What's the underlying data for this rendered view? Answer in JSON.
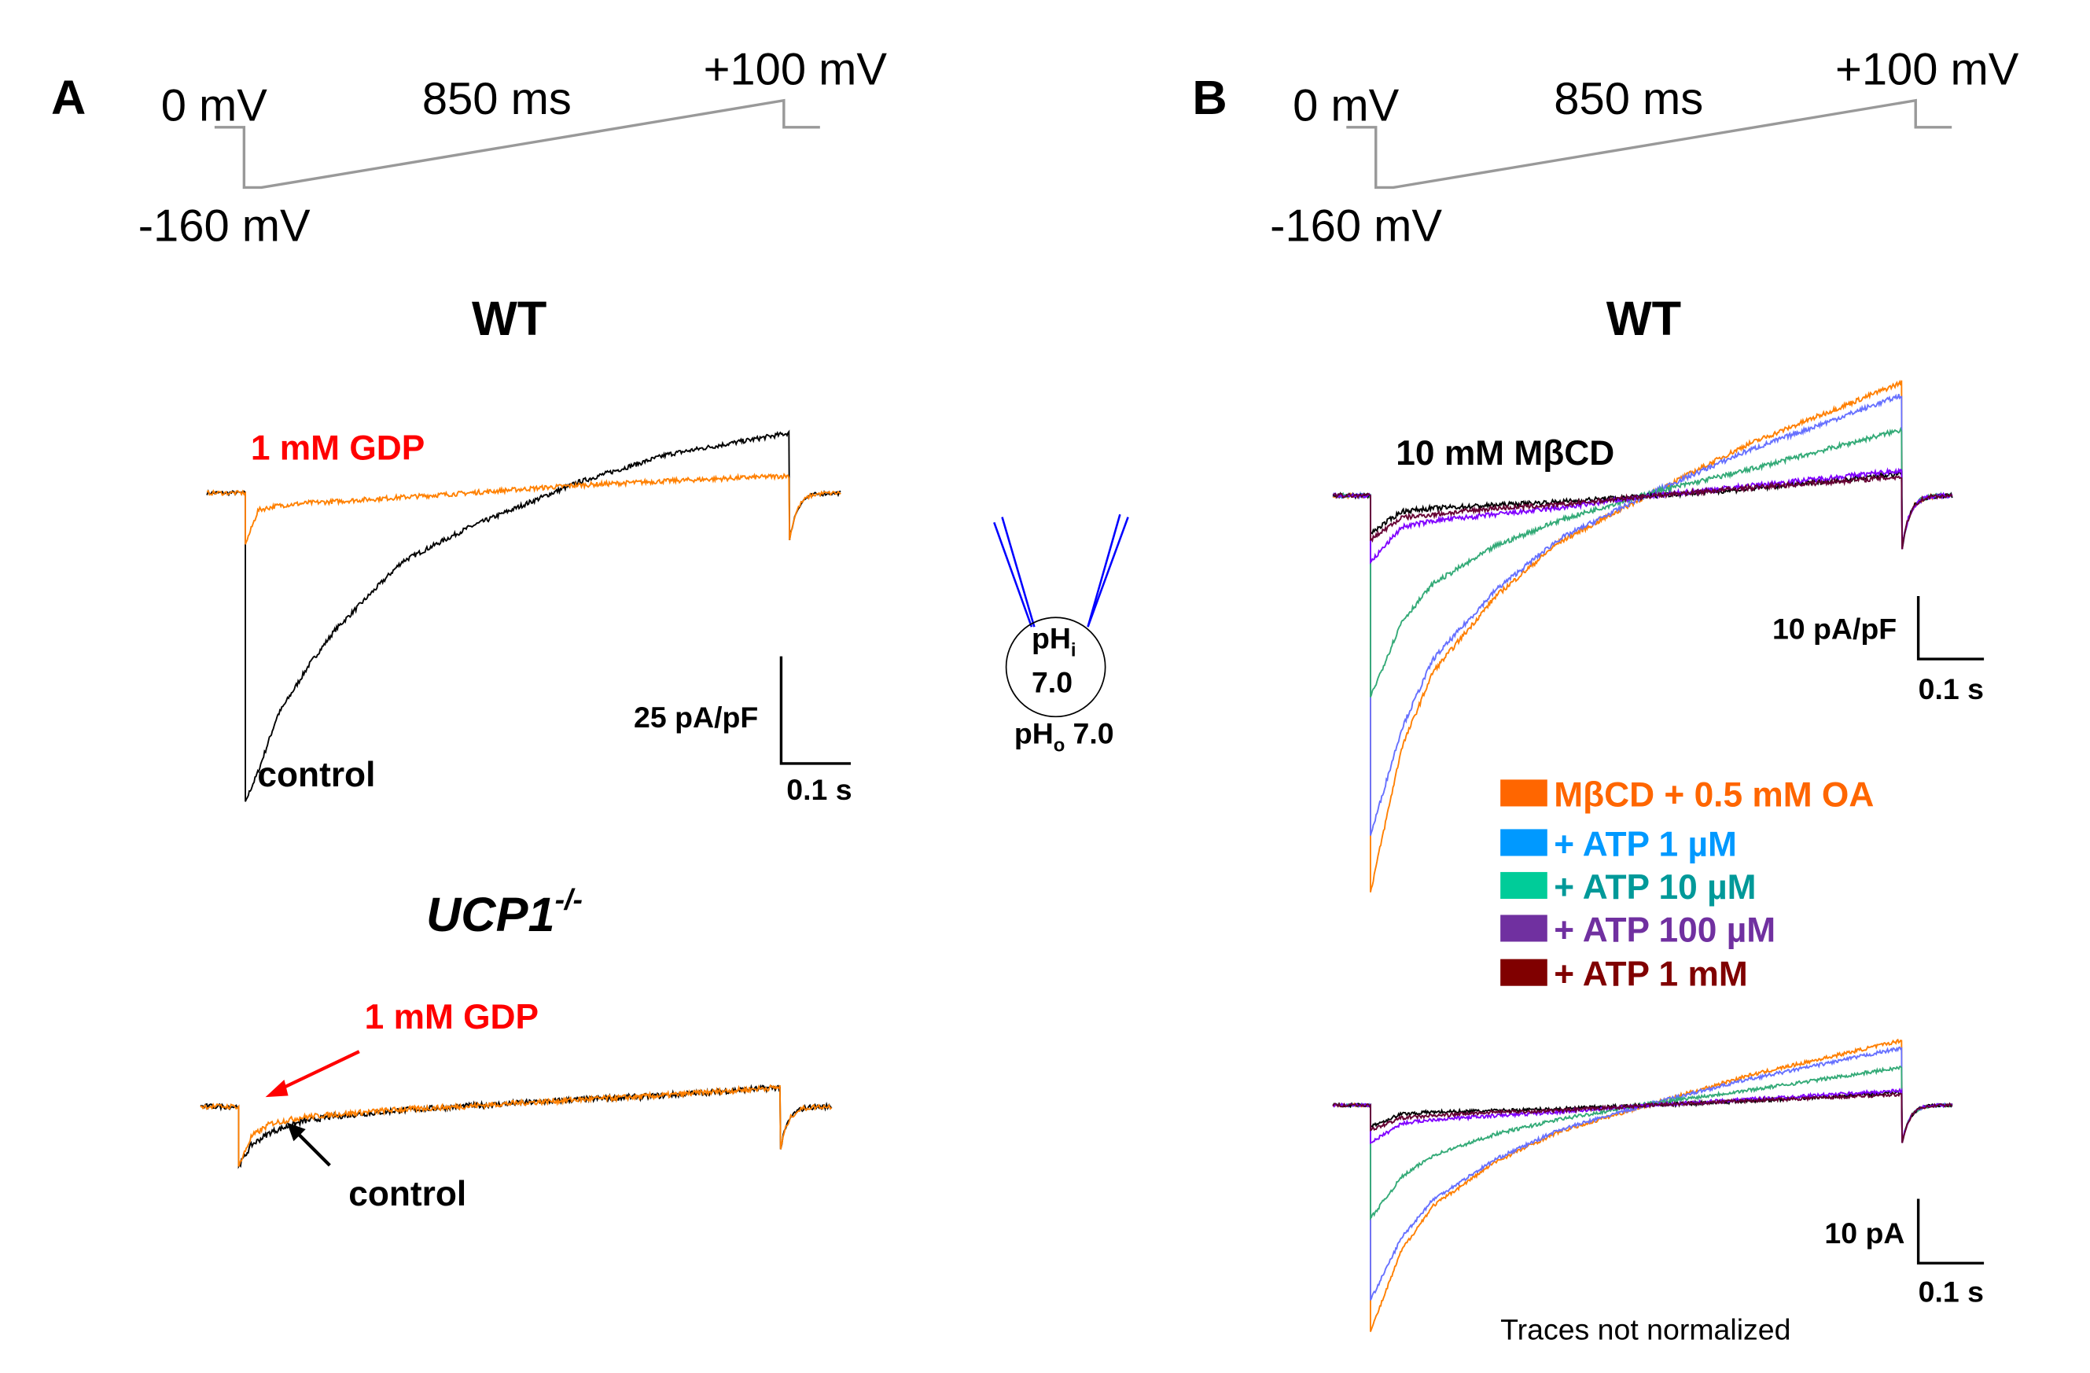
{
  "panels": {
    "A": {
      "letter": "A",
      "protocol": {
        "hold": "0 mV",
        "step": "-160 mV",
        "duration": "850 ms",
        "end": "+100 mV"
      },
      "wt_title": "WT",
      "wt_gdp_label": "1 mM GDP",
      "wt_control_label": "control",
      "wt_scale_y": "25 pA/pF",
      "wt_scale_x": "0.1 s",
      "ko_title": "UCP1",
      "ko_title_sup": "-/-",
      "ko_gdp_label": "1 mM GDP",
      "ko_control_label": "control"
    },
    "cell": {
      "ph_i": "pH",
      "ph_i_sub": "i",
      "ph_i_value": "7.0",
      "ph_o": "pH",
      "ph_o_sub": "o",
      "ph_o_value": "7.0"
    },
    "B": {
      "letter": "B",
      "protocol": {
        "hold": "0 mV",
        "step": "-160 mV",
        "duration": "850 ms",
        "end": "+100 mV"
      },
      "wt_title": "WT",
      "mbcd_label": "10 mM MβCD",
      "top_scale_y": "10 pA/pF",
      "top_scale_x": "0.1 s",
      "bottom_scale_y": "10 pA",
      "bottom_scale_x": "0.1 s",
      "note": "Traces not normalized",
      "legend": [
        {
          "label": "MβCD + 0.5 mM OA",
          "swatch": "#ff6600",
          "text_color": "#ff6600"
        },
        {
          "label": "+ ATP 1 µM",
          "swatch": "#0099ff",
          "text_color": "#0099ff"
        },
        {
          "label": "+ ATP 10 µM",
          "swatch": "#00cc99",
          "text_color": "#009999"
        },
        {
          "label": "+ ATP 100 µM",
          "swatch": "#7030a0",
          "text_color": "#7030a0"
        },
        {
          "label": "+ ATP 1 mM",
          "swatch": "#800000",
          "text_color": "#800000"
        }
      ]
    }
  },
  "colors": {
    "protocol": "#999999",
    "pipette": "#0000ff",
    "annotation_red": "#ff0000"
  },
  "chart_data": [
    {
      "type": "line",
      "panel": "A",
      "title": "WT",
      "xunit": "s",
      "yunit": "pA/pF",
      "grid": false,
      "scale_bar": {
        "y": "25 pA/pF",
        "x": "0.1 s"
      },
      "x": [
        0,
        0.02,
        0.05,
        0.1,
        0.14,
        0.245,
        0.35,
        0.52,
        0.66,
        0.85
      ],
      "tail_min": -11,
      "series": [
        {
          "name": "control",
          "color": "#000000",
          "values": [
            -72,
            -65,
            -52,
            -40,
            -32,
            -16,
            -8,
            2.5,
            9,
            14
          ]
        },
        {
          "name": "1 mM GDP",
          "color": "#ff8000",
          "values": [
            -12,
            -4,
            -3,
            -2.3,
            -2,
            -1,
            0,
            1.8,
            2.8,
            4
          ]
        }
      ]
    },
    {
      "type": "line",
      "panel": "A",
      "title": "UCP1-/-",
      "xunit": "s",
      "yunit": "pA/pF",
      "grid": false,
      "x": [
        0,
        0.02,
        0.05,
        0.1,
        0.14,
        0.245,
        0.35,
        0.52,
        0.66,
        0.85
      ],
      "tail_min": -10,
      "series": [
        {
          "name": "control",
          "color": "#000000",
          "values": [
            -14,
            -9,
            -6,
            -3.5,
            -2.5,
            -1,
            0,
            1.5,
            2.5,
            4.5
          ]
        },
        {
          "name": "1 mM GDP",
          "color": "#ff8000",
          "values": [
            -14,
            -7,
            -4,
            -2.5,
            -2,
            -0.8,
            0,
            1.5,
            2.5,
            4.5
          ]
        }
      ]
    },
    {
      "type": "line",
      "panel": "B",
      "title": "WT",
      "xunit": "s",
      "yunit": "pA/pF",
      "grid": false,
      "scale_bar": {
        "y": "10 pA/pF",
        "x": "0.1 s"
      },
      "x": [
        0,
        0.05,
        0.1,
        0.2,
        0.3,
        0.45,
        0.6,
        0.85
      ],
      "tail_min": -8.5,
      "series": [
        {
          "name": "MβCD + 0.5 mM OA",
          "color": "#ff7f00",
          "values": [
            -63,
            -40,
            -28,
            -16,
            -7.5,
            0.4,
            8,
            18
          ]
        },
        {
          "name": "+ ATP 1 µM",
          "color": "#6670ff",
          "values": [
            -54,
            -37,
            -26,
            -15,
            -7,
            0.5,
            7,
            16
          ]
        },
        {
          "name": "+ ATP 10 µM",
          "color": "#33aa77",
          "values": [
            -32,
            -20,
            -14,
            -8,
            -4,
            0.5,
            4,
            10.5
          ]
        },
        {
          "name": "10 mM MβCD",
          "color": "#000000",
          "values": [
            -6,
            -2.5,
            -2,
            -1.5,
            -1,
            0,
            1,
            3.5
          ]
        },
        {
          "name": "+ ATP 100 µM",
          "color": "#8000ff",
          "values": [
            -10.6,
            -5,
            -4,
            -3,
            -2,
            0,
            1.5,
            4
          ]
        },
        {
          "name": "+ ATP 1 mM",
          "color": "#660033",
          "values": [
            -7,
            -3.5,
            -3,
            -2,
            -1.5,
            0,
            1.2,
            3
          ]
        }
      ]
    },
    {
      "type": "line",
      "panel": "B",
      "title": "",
      "xunit": "s",
      "yunit": "pA",
      "grid": false,
      "scale_bar": {
        "y": "10 pA",
        "x": "0.1 s"
      },
      "x": [
        0,
        0.05,
        0.1,
        0.2,
        0.3,
        0.45,
        0.6,
        0.85
      ],
      "tail_min": -6,
      "series": [
        {
          "name": "MβCD + 0.5 mM OA",
          "color": "#ff7f00",
          "values": [
            -36,
            -23,
            -16,
            -9,
            -4.3,
            0.2,
            4.6,
            10.3
          ]
        },
        {
          "name": "+ ATP 1 µM",
          "color": "#6670ff",
          "values": [
            -31,
            -21,
            -15,
            -8.6,
            -4,
            0.3,
            4,
            9.1
          ]
        },
        {
          "name": "+ ATP 10 µM",
          "color": "#33aa77",
          "values": [
            -18,
            -11.4,
            -8,
            -4.6,
            -2.3,
            0.3,
            2.3,
            6
          ]
        },
        {
          "name": "10 mM MβCD",
          "color": "#000000",
          "values": [
            -3.4,
            -1.4,
            -1.1,
            -0.9,
            -0.6,
            0,
            0.6,
            2
          ]
        },
        {
          "name": "+ ATP 100 µM",
          "color": "#8000ff",
          "values": [
            -6,
            -2.9,
            -2.3,
            -1.7,
            -1.1,
            0,
            0.9,
            2.3
          ]
        },
        {
          "name": "+ ATP 1 mM",
          "color": "#660033",
          "values": [
            -4,
            -2,
            -1.7,
            -1.1,
            -0.9,
            0,
            0.7,
            1.7
          ]
        }
      ]
    }
  ]
}
